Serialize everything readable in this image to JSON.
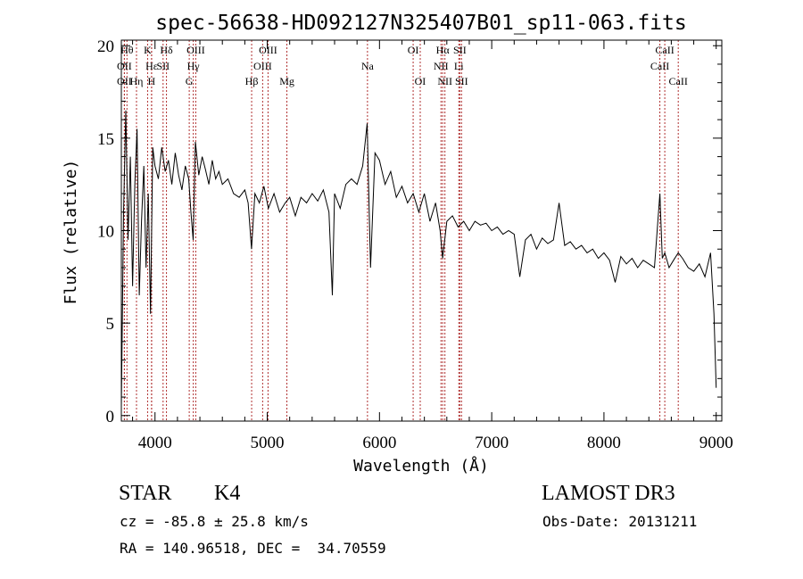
{
  "chart_data": {
    "type": "line",
    "title": "spec-56638-HD092127N325407B01_sp11-063.fits",
    "xlabel": "Wavelength (Å)",
    "ylabel": "Flux (relative)",
    "xlim": [
      3700,
      9050
    ],
    "ylim": [
      -0.3,
      20.3
    ],
    "x_ticks": [
      4000,
      5000,
      6000,
      7000,
      8000,
      9000
    ],
    "y_ticks": [
      0,
      5,
      10,
      15,
      20
    ],
    "grid": false,
    "legend": "none",
    "line_color": "#000000",
    "marker_color": "#b03030",
    "spectral_lines": [
      {
        "label": "OII",
        "wavelength": 3727,
        "row": 1
      },
      {
        "label": "OII",
        "wavelength": 3727,
        "row": 2
      },
      {
        "label": "Hθ",
        "wavelength": 3750,
        "row": 0
      },
      {
        "label": "Hη",
        "wavelength": 3835,
        "row": 2
      },
      {
        "label": "K",
        "wavelength": 3934,
        "row": 0
      },
      {
        "label": "H",
        "wavelength": 3969,
        "row": 2
      },
      {
        "label": "Hε",
        "wavelength": 3970,
        "row": 1
      },
      {
        "label": "SII",
        "wavelength": 4072,
        "row": 1
      },
      {
        "label": "Hδ",
        "wavelength": 4102,
        "row": 0
      },
      {
        "label": "G",
        "wavelength": 4305,
        "row": 2
      },
      {
        "label": "Hγ",
        "wavelength": 4341,
        "row": 1
      },
      {
        "label": "OIII",
        "wavelength": 4363,
        "row": 0
      },
      {
        "label": "Hβ",
        "wavelength": 4861,
        "row": 2
      },
      {
        "label": "OIII",
        "wavelength": 4959,
        "row": 1
      },
      {
        "label": "OIII",
        "wavelength": 5007,
        "row": 0
      },
      {
        "label": "Mg",
        "wavelength": 5175,
        "row": 2
      },
      {
        "label": "Na",
        "wavelength": 5893,
        "row": 1
      },
      {
        "label": "OI",
        "wavelength": 6300,
        "row": 0
      },
      {
        "label": "OI",
        "wavelength": 6363,
        "row": 2
      },
      {
        "label": "NII",
        "wavelength": 6548,
        "row": 1
      },
      {
        "label": "Hα",
        "wavelength": 6563,
        "row": 0
      },
      {
        "label": "NII",
        "wavelength": 6583,
        "row": 2
      },
      {
        "label": "Li",
        "wavelength": 6707,
        "row": 1
      },
      {
        "label": "SII",
        "wavelength": 6716,
        "row": 0
      },
      {
        "label": "SII",
        "wavelength": 6731,
        "row": 2
      },
      {
        "label": "CaII",
        "wavelength": 8498,
        "row": 1
      },
      {
        "label": "CaII",
        "wavelength": 8542,
        "row": 0
      },
      {
        "label": "CaII",
        "wavelength": 8662,
        "row": 2
      }
    ],
    "series": [
      {
        "x": [
          3700,
          3720,
          3740,
          3760,
          3780,
          3800,
          3820,
          3840,
          3860,
          3880,
          3900,
          3920,
          3940,
          3960,
          3980,
          4000,
          4030,
          4060,
          4090,
          4120,
          4150,
          4180,
          4210,
          4240,
          4270,
          4300,
          4320,
          4340,
          4360,
          4390,
          4420,
          4450,
          4480,
          4510,
          4540,
          4570,
          4600,
          4650,
          4700,
          4750,
          4800,
          4830,
          4860,
          4890,
          4930,
          4970,
          5010,
          5060,
          5110,
          5160,
          5200,
          5250,
          5300,
          5350,
          5400,
          5450,
          5500,
          5550,
          5580,
          5600,
          5650,
          5700,
          5750,
          5800,
          5850,
          5890,
          5920,
          5960,
          6000,
          6050,
          6100,
          6150,
          6200,
          6250,
          6300,
          6350,
          6400,
          6450,
          6500,
          6540,
          6563,
          6600,
          6650,
          6700,
          6750,
          6800,
          6850,
          6900,
          6950,
          7000,
          7050,
          7100,
          7150,
          7200,
          7250,
          7300,
          7350,
          7400,
          7450,
          7500,
          7550,
          7600,
          7650,
          7700,
          7750,
          7800,
          7850,
          7900,
          7950,
          8000,
          8050,
          8100,
          8150,
          8200,
          8250,
          8300,
          8350,
          8400,
          8450,
          8498,
          8520,
          8542,
          8580,
          8620,
          8662,
          8700,
          8750,
          8800,
          8850,
          8900,
          8950,
          8980,
          9000
        ],
        "y": [
          0.5,
          11.0,
          16.5,
          9.5,
          14.0,
          7.0,
          12.5,
          15.5,
          6.5,
          10.5,
          13.5,
          8.0,
          12.0,
          5.5,
          14.5,
          13.5,
          12.8,
          14.5,
          13.2,
          13.8,
          12.5,
          14.2,
          13.0,
          12.2,
          13.5,
          12.8,
          11.0,
          9.5,
          14.8,
          13.0,
          14.0,
          13.3,
          12.5,
          13.8,
          12.8,
          13.2,
          12.5,
          12.8,
          12.0,
          11.8,
          12.2,
          11.5,
          9.0,
          12.0,
          11.5,
          12.4,
          11.2,
          12.0,
          11.0,
          11.5,
          11.8,
          10.8,
          11.8,
          11.5,
          12.0,
          11.6,
          12.2,
          11.0,
          6.5,
          12.0,
          11.2,
          12.5,
          12.8,
          12.5,
          13.5,
          15.8,
          8.0,
          14.2,
          13.8,
          12.5,
          13.2,
          11.8,
          12.4,
          11.5,
          12.0,
          11.0,
          12.0,
          10.5,
          11.5,
          10.0,
          8.5,
          10.5,
          10.8,
          10.2,
          10.5,
          10.0,
          10.5,
          10.3,
          10.4,
          10.0,
          10.2,
          9.8,
          10.0,
          9.8,
          7.5,
          9.5,
          9.8,
          9.0,
          9.6,
          9.3,
          9.5,
          11.5,
          9.2,
          9.4,
          9.0,
          9.2,
          8.8,
          9.0,
          8.5,
          8.8,
          8.4,
          7.2,
          8.6,
          8.2,
          8.5,
          8.0,
          8.4,
          8.2,
          8.0,
          12.0,
          8.5,
          8.8,
          8.0,
          8.4,
          8.8,
          8.5,
          8.0,
          7.8,
          8.2,
          7.5,
          8.8,
          5.5,
          1.5
        ]
      }
    ]
  },
  "info": {
    "object_class": "STAR",
    "subclass": "K4",
    "survey": "LAMOST DR3",
    "redshift": "cz = -85.8 ± 25.8 km/s",
    "obs_date": "Obs-Date: 20131211",
    "coordinates": "RA = 140.96518, DEC =  34.70559"
  }
}
